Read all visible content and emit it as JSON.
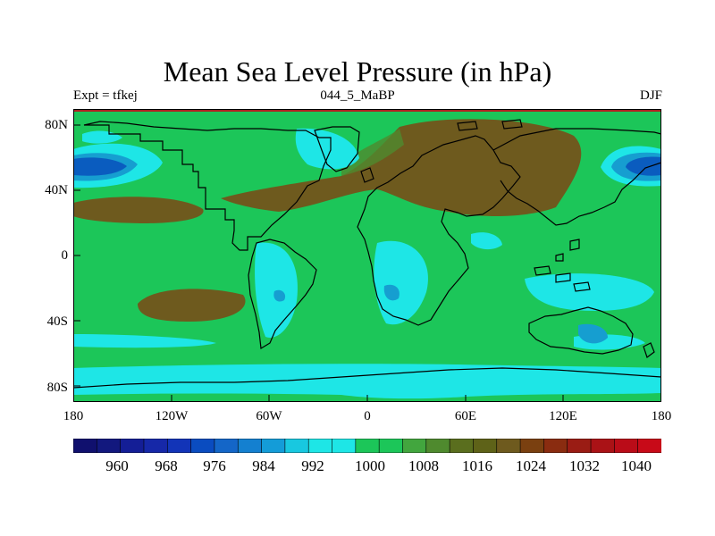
{
  "title": "Mean Sea Level Pressure (in hPa)",
  "subtitle_left": "Expt = tfkej",
  "subtitle_center": "044_5_MaBP",
  "subtitle_right": "DJF",
  "colors": {
    "ocean_base": "#1cc659",
    "light_blue": "#1ee6e6",
    "mid_blue": "#169ed0",
    "deep_blue": "#0a5cbf",
    "brown_high": "#6e5a1e",
    "olive": "#4f8a2e",
    "coast": "#000000",
    "top_strip": "#b02020"
  },
  "map": {
    "lat_labels": [
      "80N",
      "40N",
      "0",
      "40S",
      "80S"
    ],
    "lon_labels": [
      "180",
      "120W",
      "60W",
      "0",
      "60E",
      "120E",
      "180"
    ]
  },
  "colorbar": {
    "colors": [
      "#10106e",
      "#12187e",
      "#141e96",
      "#1628a8",
      "#1234b8",
      "#0a4cc0",
      "#1466c8",
      "#1480d0",
      "#149cd8",
      "#18c8e0",
      "#1ee6e6",
      "#1ee6e6",
      "#1cc659",
      "#1cc659",
      "#42a63e",
      "#4f8a2e",
      "#5a6e1e",
      "#5e6218",
      "#6e5a1e",
      "#7a4010",
      "#8a2c10",
      "#9a1c14",
      "#aa1216",
      "#ba0c18",
      "#c80a18"
    ],
    "labels": [
      "960",
      "968",
      "976",
      "984",
      "992",
      "1000",
      "1008",
      "1016",
      "1024",
      "1032",
      "1040"
    ]
  }
}
